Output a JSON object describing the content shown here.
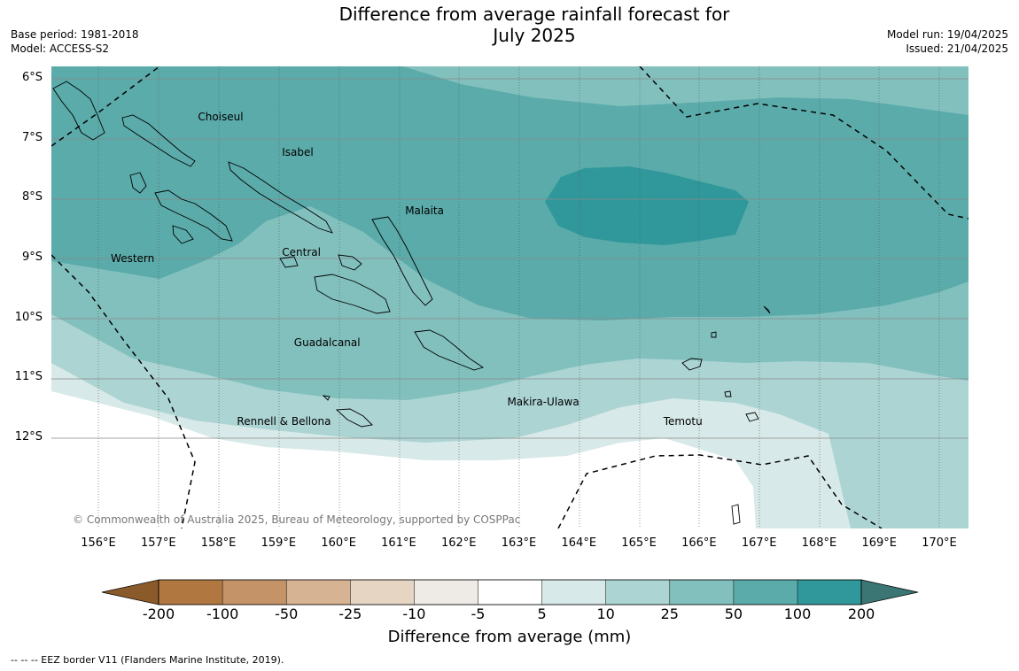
{
  "title_line1": "Difference from average rainfall forecast for",
  "title_line2": "July 2025",
  "base_period": "Base period: 1981-2018",
  "model": "Model: ACCESS-S2",
  "model_run": "Model run: 19/04/2025",
  "issued": "Issued: 21/04/2025",
  "copyright": "© Commonwealth of Australia 2025, Bureau of Meteorology, supported by COSPPac",
  "lat_labels": [
    "6°S",
    "7°S",
    "8°S",
    "9°S",
    "10°S",
    "11°S",
    "12°S"
  ],
  "lon_labels": [
    "156°E",
    "157°E",
    "158°E",
    "159°E",
    "160°E",
    "161°E",
    "162°E",
    "163°E",
    "164°E",
    "165°E",
    "166°E",
    "167°E",
    "168°E",
    "169°E",
    "170°E"
  ],
  "places": [
    {
      "name": "Choiseul",
      "lon": 158.1,
      "lat": -6.63
    },
    {
      "name": "Isabel",
      "lon": 159.5,
      "lat": -7.22
    },
    {
      "name": "Malaita",
      "lon": 161.55,
      "lat": -8.2
    },
    {
      "name": "Western",
      "lon": 156.65,
      "lat": -9.0
    },
    {
      "name": "Central",
      "lon": 159.5,
      "lat": -8.9
    },
    {
      "name": "Guadalcanal",
      "lon": 159.7,
      "lat": -10.4
    },
    {
      "name": "Makira-Ulawa",
      "lon": 163.25,
      "lat": -11.4
    },
    {
      "name": "Rennell & Bellona",
      "lon": 158.75,
      "lat": -11.72
    },
    {
      "name": "Temotu",
      "lon": 165.85,
      "lat": -11.72
    }
  ],
  "colorbar": {
    "title": "Difference from average (mm)",
    "labels": [
      "-200",
      "-100",
      "-50",
      "-25",
      "-10",
      "-5",
      "5",
      "10",
      "25",
      "50",
      "100",
      "200"
    ],
    "low_extend_color": "#8a5a2b",
    "colors": [
      "#b07840",
      "#c49468",
      "#d6b393",
      "#e6d5c3",
      "#eeebe7",
      "#ffffff",
      "#d7e9e8",
      "#acd4d3",
      "#82c0be",
      "#5aabaa",
      "#30989a"
    ],
    "high_extend_color": "#3b7675"
  },
  "legend_note": "--  --  -- EEZ border V11 (Flanders Marine Institute, 2019)."
}
